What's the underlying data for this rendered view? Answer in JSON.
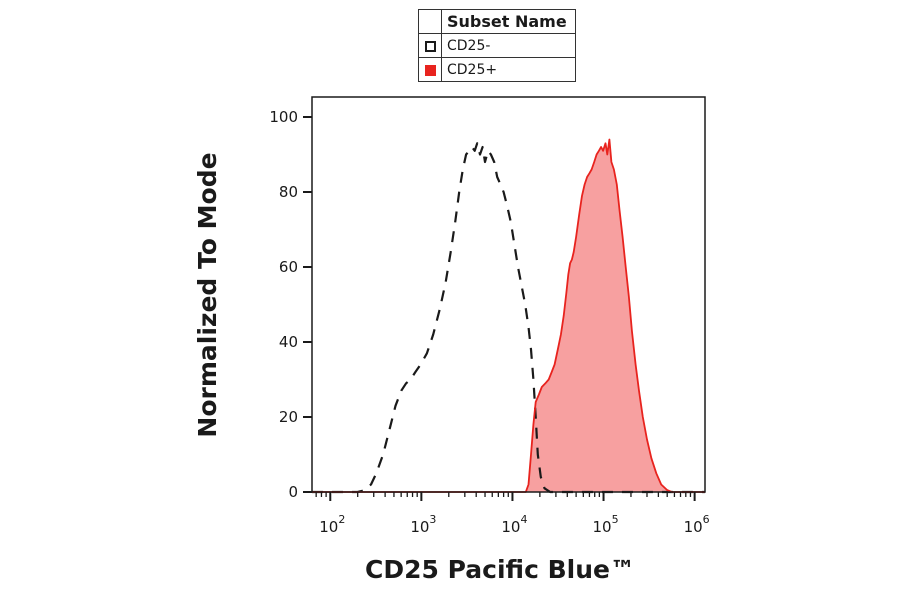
{
  "chart_data": {
    "type": "area",
    "title": "",
    "xlabel": "CD25 Pacific Blue™",
    "ylabel": "Normalized To Mode",
    "x_scale": "log",
    "xlim": [
      63,
      1300000
    ],
    "ylim": [
      0,
      100
    ],
    "x_ticks": [
      {
        "base": "10",
        "exp": "2",
        "value": 100
      },
      {
        "base": "10",
        "exp": "3",
        "value": 1000
      },
      {
        "base": "10",
        "exp": "4",
        "value": 10000
      },
      {
        "base": "10",
        "exp": "5",
        "value": 100000
      },
      {
        "base": "10",
        "exp": "6",
        "value": 1000000
      }
    ],
    "y_ticks": [
      {
        "label": "0",
        "value": 0
      },
      {
        "label": "20",
        "value": 20
      },
      {
        "label": "40",
        "value": 40
      },
      {
        "label": "60",
        "value": 60
      },
      {
        "label": "80",
        "value": 80
      },
      {
        "label": "100",
        "value": 100
      }
    ],
    "legend": {
      "title": "Subset Name",
      "placement": "top-center",
      "entries": [
        {
          "label": "CD25-",
          "color": "#1a1a1a",
          "style": "dashed-outline"
        },
        {
          "label": "CD25+",
          "color": "#e8231e",
          "style": "filled"
        }
      ]
    },
    "series": [
      {
        "name": "CD25-",
        "color": "#1a1a1a",
        "style": "dashed",
        "fill": "none",
        "points": [
          [
            63,
            0
          ],
          [
            200,
            0
          ],
          [
            240,
            0.5
          ],
          [
            280,
            2
          ],
          [
            320,
            5
          ],
          [
            380,
            10
          ],
          [
            450,
            17
          ],
          [
            520,
            23
          ],
          [
            600,
            27
          ],
          [
            680,
            29
          ],
          [
            760,
            30
          ],
          [
            860,
            32
          ],
          [
            980,
            34
          ],
          [
            1150,
            37
          ],
          [
            1350,
            42
          ],
          [
            1600,
            49
          ],
          [
            1850,
            56
          ],
          [
            2100,
            64
          ],
          [
            2350,
            72
          ],
          [
            2600,
            80
          ],
          [
            2850,
            86
          ],
          [
            3100,
            90
          ],
          [
            3350,
            91
          ],
          [
            3600,
            92
          ],
          [
            3850,
            91
          ],
          [
            4100,
            93
          ],
          [
            4400,
            90
          ],
          [
            4700,
            92
          ],
          [
            5000,
            88
          ],
          [
            5400,
            91
          ],
          [
            5800,
            90
          ],
          [
            6300,
            88
          ],
          [
            6800,
            84
          ],
          [
            7400,
            82
          ],
          [
            8000,
            80
          ],
          [
            8800,
            76
          ],
          [
            9600,
            72
          ],
          [
            10500,
            66
          ],
          [
            11500,
            60
          ],
          [
            12600,
            55
          ],
          [
            13800,
            50
          ],
          [
            15000,
            44
          ],
          [
            16000,
            38
          ],
          [
            17000,
            30
          ],
          [
            18000,
            20
          ],
          [
            19000,
            10
          ],
          [
            20500,
            4
          ],
          [
            22500,
            1
          ],
          [
            26000,
            0
          ],
          [
            1300000,
            0
          ]
        ]
      },
      {
        "name": "CD25+",
        "color": "#e8231e",
        "style": "solid",
        "fill": "#f7a0a0",
        "points": [
          [
            63,
            0
          ],
          [
            14000,
            0
          ],
          [
            15000,
            2
          ],
          [
            16000,
            10
          ],
          [
            17000,
            18
          ],
          [
            18000,
            24
          ],
          [
            19500,
            26
          ],
          [
            21000,
            28
          ],
          [
            23000,
            29
          ],
          [
            25000,
            30
          ],
          [
            27000,
            32
          ],
          [
            29000,
            34
          ],
          [
            31500,
            38
          ],
          [
            34000,
            42
          ],
          [
            36500,
            47
          ],
          [
            39000,
            53
          ],
          [
            41000,
            58
          ],
          [
            43000,
            61
          ],
          [
            45000,
            62
          ],
          [
            47000,
            64
          ],
          [
            50000,
            68
          ],
          [
            54000,
            74
          ],
          [
            58000,
            79
          ],
          [
            62000,
            82
          ],
          [
            66000,
            84
          ],
          [
            70000,
            85
          ],
          [
            74000,
            86
          ],
          [
            79000,
            88
          ],
          [
            84000,
            90
          ],
          [
            89000,
            91
          ],
          [
            94000,
            92
          ],
          [
            99000,
            91
          ],
          [
            105000,
            93
          ],
          [
            110000,
            90
          ],
          [
            116000,
            94
          ],
          [
            122000,
            88
          ],
          [
            130000,
            86
          ],
          [
            140000,
            82
          ],
          [
            150000,
            75
          ],
          [
            162000,
            68
          ],
          [
            175000,
            60
          ],
          [
            190000,
            52
          ],
          [
            205000,
            43
          ],
          [
            225000,
            34
          ],
          [
            245000,
            27
          ],
          [
            270000,
            20
          ],
          [
            300000,
            14
          ],
          [
            335000,
            9
          ],
          [
            380000,
            5
          ],
          [
            430000,
            2
          ],
          [
            500000,
            0.5
          ],
          [
            560000,
            0
          ],
          [
            1300000,
            0
          ]
        ]
      }
    ]
  }
}
